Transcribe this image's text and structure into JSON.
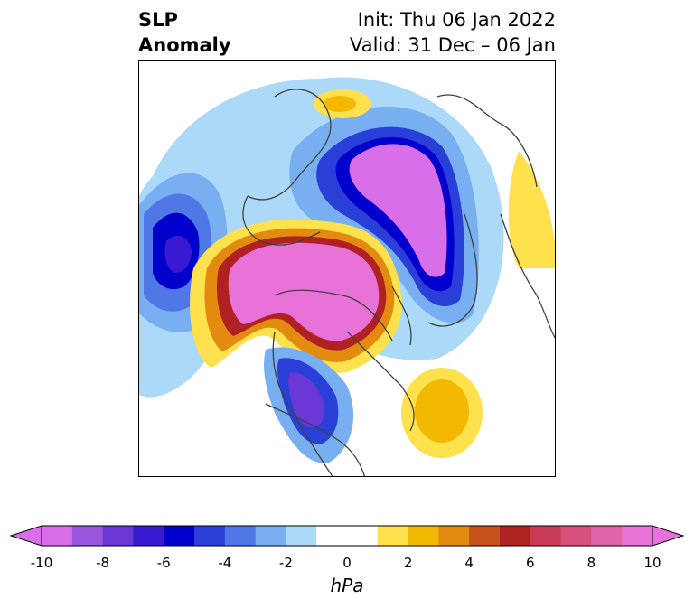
{
  "title": {
    "left_line1": "SLP",
    "left_line2": "Anomaly",
    "right_line1": "Init: Thu 06 Jan 2022",
    "right_line2": "Valid: 31 Dec – 06 Jan"
  },
  "colorbar": {
    "label": "hPa",
    "ticks": [
      "-10",
      "-8",
      "-6",
      "-4",
      "-2",
      "0",
      "2",
      "4",
      "6",
      "8",
      "10"
    ],
    "colors": [
      "#d86ee8",
      "#9a55de",
      "#6a38d6",
      "#3a1ad0",
      "#0000cc",
      "#2a3fd8",
      "#4f78e6",
      "#78aff0",
      "#acd9f8",
      "#ffffff",
      "#ffffff",
      "#ffe04d",
      "#f3b800",
      "#e38b10",
      "#c7521a",
      "#b02222",
      "#c83a55",
      "#d8507d",
      "#e065a8",
      "#e872d8"
    ],
    "extend_left_color": "#d86ee8",
    "extend_right_color": "#e872d8"
  },
  "map": {
    "projection": "north-polar-stereographic",
    "variable": "sea-level-pressure-anomaly"
  }
}
